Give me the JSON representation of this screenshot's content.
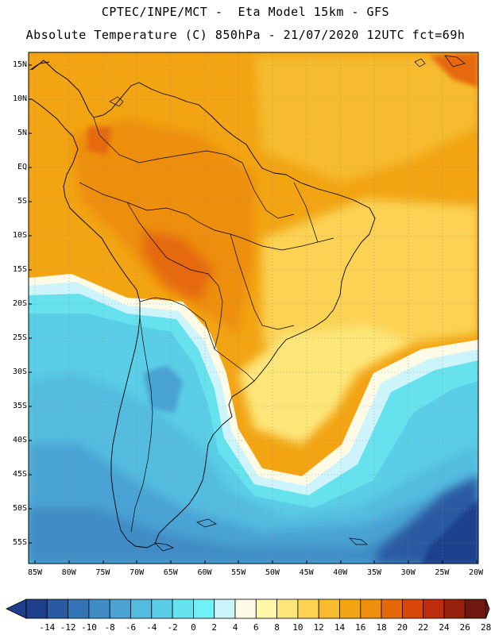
{
  "header": {
    "line1": "CPTEC/INPE/MCT -  Eta Model 15km - GFS",
    "line2": "Absolute Temperature (C) 850hPa - 21/07/2020 12UTC fct=69h"
  },
  "lat_labels": [
    "15N",
    "10N",
    "5N",
    "EQ",
    "5S",
    "10S",
    "15S",
    "20S",
    "25S",
    "30S",
    "35S",
    "40S",
    "45S",
    "50S",
    "55S"
  ],
  "lon_labels": [
    "85W",
    "80W",
    "75W",
    "70W",
    "65W",
    "60W",
    "55W",
    "50W",
    "45W",
    "40W",
    "35W",
    "30W",
    "25W",
    "20W"
  ],
  "colorbar": {
    "labels": [
      "-14",
      "-12",
      "-10",
      "-8",
      "-6",
      "-4",
      "-2",
      "0",
      "2",
      "4",
      "6",
      "8",
      "10",
      "12",
      "14",
      "16",
      "18",
      "20",
      "22",
      "24",
      "26",
      "28"
    ],
    "colors": [
      "#1e3f8c",
      "#2a5aa2",
      "#3574b6",
      "#3f8cc6",
      "#4aa3d4",
      "#52bcdf",
      "#5acee6",
      "#66e2ee",
      "#6ff2f6",
      "#cdf4fb",
      "#fdfbe6",
      "#fff7a8",
      "#fde679",
      "#fbd252",
      "#f6bb2e",
      "#f2a413",
      "#ee8e0c",
      "#e66908",
      "#d8470a",
      "#be2d0c",
      "#9a200e",
      "#6f1711"
    ]
  }
}
